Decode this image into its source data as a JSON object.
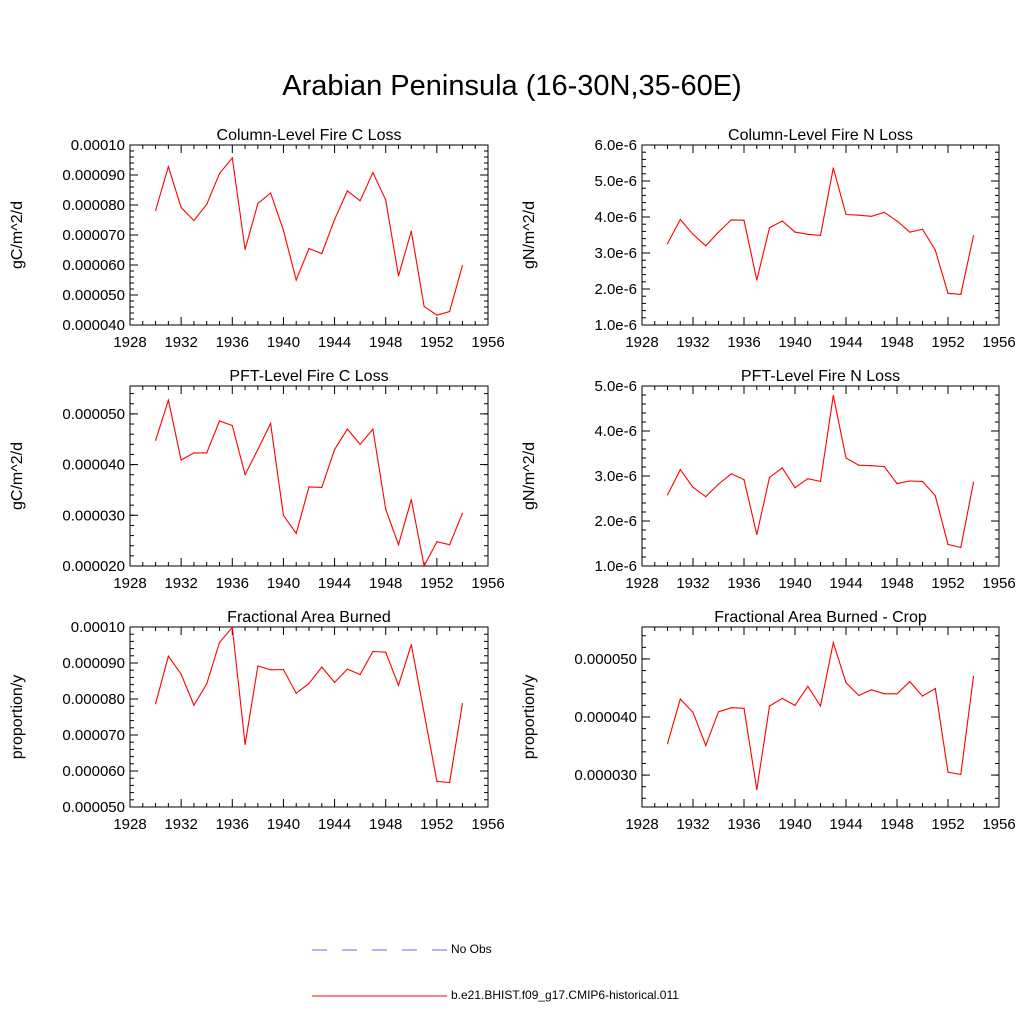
{
  "figure": {
    "title": "Arabian Peninsula (16-30N,35-60E)"
  },
  "legend": {
    "entries": [
      {
        "label": "No Obs",
        "color": "#6a6ae0",
        "dash": "dashed"
      },
      {
        "label": "b.e21.BHIST.f09_g17.CMIP6-historical.011",
        "color": "#ff0000",
        "dash": "solid"
      }
    ]
  },
  "chart_data": [
    {
      "type": "line",
      "title": "Column-Level Fire C Loss",
      "ylabel": "gC/m^2/d",
      "xlabel": "",
      "xlim": [
        1928,
        1956
      ],
      "xticks": [
        "1928",
        "1932",
        "1936",
        "1940",
        "1944",
        "1948",
        "1952",
        "1956"
      ],
      "ylim": [
        4e-05,
        0.0001
      ],
      "yticks": [
        "0.000040",
        "0.000050",
        "0.000060",
        "0.000070",
        "0.000080",
        "0.000090",
        "0.00010"
      ],
      "x": [
        1930,
        1931,
        1932,
        1933,
        1934,
        1935,
        1936,
        1937,
        1938,
        1939,
        1940,
        1941,
        1942,
        1943,
        1944,
        1945,
        1946,
        1947,
        1948,
        1949,
        1950,
        1951,
        1952,
        1953,
        1954
      ],
      "series": [
        {
          "color": "#ff0000",
          "values": [
            7.82e-05,
            9.28e-05,
            7.92e-05,
            7.48e-05,
            8.02e-05,
            9.05e-05,
            9.57e-05,
            6.52e-05,
            8.05e-05,
            8.4e-05,
            7.16e-05,
            5.5e-05,
            6.55e-05,
            6.38e-05,
            7.52e-05,
            8.47e-05,
            8.14e-05,
            9.08e-05,
            8.17e-05,
            5.64e-05,
            7.13e-05,
            4.62e-05,
            4.33e-05,
            4.45e-05,
            5.98e-05
          ]
        }
      ],
      "grid": false
    },
    {
      "type": "line",
      "title": "Column-Level Fire N Loss",
      "ylabel": "gN/m^2/d",
      "xlabel": "",
      "xlim": [
        1928,
        1956
      ],
      "xticks": [
        "1928",
        "1932",
        "1936",
        "1940",
        "1944",
        "1948",
        "1952",
        "1956"
      ],
      "ylim": [
        1e-06,
        6e-06
      ],
      "yticks": [
        "1.0e-6",
        "2.0e-6",
        "3.0e-6",
        "4.0e-6",
        "5.0e-6",
        "6.0e-6"
      ],
      "x": [
        1930,
        1931,
        1932,
        1933,
        1934,
        1935,
        1936,
        1937,
        1938,
        1939,
        1940,
        1941,
        1942,
        1943,
        1944,
        1945,
        1946,
        1947,
        1948,
        1949,
        1950,
        1951,
        1952,
        1953,
        1954
      ],
      "series": [
        {
          "color": "#ff0000",
          "values": [
            3.26e-06,
            3.93e-06,
            3.52e-06,
            3.2e-06,
            3.58e-06,
            3.92e-06,
            3.91e-06,
            2.25e-06,
            3.7e-06,
            3.89e-06,
            3.58e-06,
            3.52e-06,
            3.49e-06,
            5.36e-06,
            4.07e-06,
            4.05e-06,
            4.02e-06,
            4.13e-06,
            3.89e-06,
            3.58e-06,
            3.66e-06,
            3.08e-06,
            1.88e-06,
            1.85e-06,
            3.48e-06
          ]
        }
      ],
      "grid": false
    },
    {
      "type": "line",
      "title": "PFT-Level Fire C Loss",
      "ylabel": "gC/m^2/d",
      "xlabel": "",
      "xlim": [
        1928,
        1956
      ],
      "xticks": [
        "1928",
        "1932",
        "1936",
        "1940",
        "1944",
        "1948",
        "1952",
        "1956"
      ],
      "ylim": [
        2e-05,
        5.55e-05
      ],
      "yticks": [
        "0.000020",
        "0.000030",
        "0.000040",
        "0.000050"
      ],
      "ytickvals": [
        2e-05,
        3e-05,
        4e-05,
        5e-05
      ],
      "x": [
        1930,
        1931,
        1932,
        1933,
        1934,
        1935,
        1936,
        1937,
        1938,
        1939,
        1940,
        1941,
        1942,
        1943,
        1944,
        1945,
        1946,
        1947,
        1948,
        1949,
        1950,
        1951,
        1952,
        1953,
        1954
      ],
      "series": [
        {
          "color": "#ff0000",
          "values": [
            4.48e-05,
            5.27e-05,
            4.09e-05,
            4.23e-05,
            4.23e-05,
            4.86e-05,
            4.77e-05,
            3.8e-05,
            4.3e-05,
            4.81e-05,
            3e-05,
            2.64e-05,
            3.56e-05,
            3.55e-05,
            4.3e-05,
            4.7e-05,
            4.4e-05,
            4.7e-05,
            3.12e-05,
            2.42e-05,
            3.31e-05,
            2e-05,
            2.48e-05,
            2.42e-05,
            3.04e-05
          ]
        }
      ],
      "grid": false
    },
    {
      "type": "line",
      "title": "PFT-Level Fire N Loss",
      "ylabel": "gN/m^2/d",
      "xlabel": "",
      "xlim": [
        1928,
        1956
      ],
      "xticks": [
        "1928",
        "1932",
        "1936",
        "1940",
        "1944",
        "1948",
        "1952",
        "1956"
      ],
      "ylim": [
        1e-06,
        5e-06
      ],
      "yticks": [
        "1.0e-6",
        "2.0e-6",
        "3.0e-6",
        "4.0e-6",
        "5.0e-6"
      ],
      "x": [
        1930,
        1931,
        1932,
        1933,
        1934,
        1935,
        1936,
        1937,
        1938,
        1939,
        1940,
        1941,
        1942,
        1943,
        1944,
        1945,
        1946,
        1947,
        1948,
        1949,
        1950,
        1951,
        1952,
        1953,
        1954
      ],
      "series": [
        {
          "color": "#ff0000",
          "values": [
            2.58e-06,
            3.14e-06,
            2.75e-06,
            2.54e-06,
            2.82e-06,
            3.05e-06,
            2.92e-06,
            1.7e-06,
            2.97e-06,
            3.18e-06,
            2.74e-06,
            2.94e-06,
            2.88e-06,
            4.79e-06,
            3.4e-06,
            3.24e-06,
            3.23e-06,
            3.21e-06,
            2.83e-06,
            2.89e-06,
            2.88e-06,
            2.56e-06,
            1.48e-06,
            1.41e-06,
            2.86e-06
          ]
        }
      ],
      "grid": false
    },
    {
      "type": "line",
      "title": "Fractional Area Burned",
      "ylabel": "proportion/y",
      "xlabel": "",
      "xlim": [
        1928,
        1956
      ],
      "xticks": [
        "1928",
        "1932",
        "1936",
        "1940",
        "1944",
        "1948",
        "1952",
        "1956"
      ],
      "ylim": [
        5e-05,
        0.0001
      ],
      "yticks": [
        "0.000050",
        "0.000060",
        "0.000070",
        "0.000080",
        "0.000090",
        "0.00010"
      ],
      "x": [
        1930,
        1931,
        1932,
        1933,
        1934,
        1935,
        1936,
        1937,
        1938,
        1939,
        1940,
        1941,
        1942,
        1943,
        1944,
        1945,
        1946,
        1947,
        1948,
        1949,
        1950,
        1951,
        1952,
        1953,
        1954
      ],
      "series": [
        {
          "color": "#ff0000",
          "values": [
            7.87e-05,
            9.19e-05,
            8.69e-05,
            7.83e-05,
            8.42e-05,
            9.57e-05,
            9.99e-05,
            6.74e-05,
            8.92e-05,
            8.81e-05,
            8.82e-05,
            8.16e-05,
            8.43e-05,
            8.89e-05,
            8.46e-05,
            8.83e-05,
            8.68e-05,
            9.32e-05,
            9.3e-05,
            8.38e-05,
            9.51e-05,
            7.61e-05,
            5.71e-05,
            5.68e-05,
            7.87e-05
          ]
        }
      ],
      "grid": false
    },
    {
      "type": "line",
      "title": "Fractional Area Burned - Crop",
      "ylabel": "proportion/y",
      "xlabel": "",
      "xlim": [
        1928,
        1956
      ],
      "xticks": [
        "1928",
        "1932",
        "1936",
        "1940",
        "1944",
        "1948",
        "1952",
        "1956"
      ],
      "ylim": [
        2.45e-05,
        5.55e-05
      ],
      "yticks": [
        "0.000030",
        "0.000040",
        "0.000050"
      ],
      "ytickvals": [
        3e-05,
        4e-05,
        5e-05
      ],
      "x": [
        1930,
        1931,
        1932,
        1933,
        1934,
        1935,
        1936,
        1937,
        1938,
        1939,
        1940,
        1941,
        1942,
        1943,
        1944,
        1945,
        1946,
        1947,
        1948,
        1949,
        1950,
        1951,
        1952,
        1953,
        1954
      ],
      "series": [
        {
          "color": "#ff0000",
          "values": [
            3.54e-05,
            4.31e-05,
            4.08e-05,
            3.51e-05,
            4.09e-05,
            4.16e-05,
            4.15e-05,
            2.75e-05,
            4.19e-05,
            4.32e-05,
            4.2e-05,
            4.53e-05,
            4.19e-05,
            5.28e-05,
            4.59e-05,
            4.37e-05,
            4.47e-05,
            4.4e-05,
            4.4e-05,
            4.61e-05,
            4.36e-05,
            4.49e-05,
            3.05e-05,
            3.01e-05,
            4.7e-05
          ]
        }
      ],
      "grid": false
    }
  ]
}
